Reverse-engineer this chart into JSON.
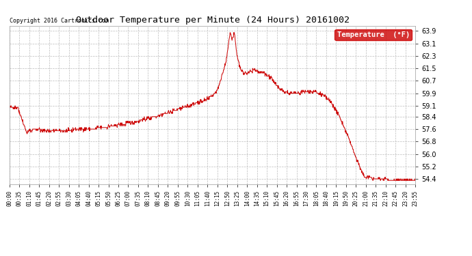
{
  "title": "Outdoor Temperature per Minute (24 Hours) 20161002",
  "copyright_text": "Copyright 2016 Cartronics.com",
  "legend_label": "Temperature  (°F)",
  "line_color": "#cc0000",
  "background_color": "#ffffff",
  "plot_bg_color": "#ffffff",
  "grid_color": "#bbbbbb",
  "yticks": [
    54.4,
    55.2,
    56.0,
    56.8,
    57.6,
    58.4,
    59.1,
    59.9,
    60.7,
    61.5,
    62.3,
    63.1,
    63.9
  ],
  "ylim": [
    54.05,
    64.25
  ],
  "xtick_labels": [
    "00:00",
    "00:35",
    "01:10",
    "01:45",
    "02:20",
    "02:55",
    "03:30",
    "04:05",
    "04:40",
    "05:15",
    "05:50",
    "06:25",
    "07:00",
    "07:35",
    "08:10",
    "08:45",
    "09:20",
    "09:55",
    "10:30",
    "11:05",
    "11:40",
    "12:15",
    "12:50",
    "13:25",
    "14:00",
    "14:35",
    "15:10",
    "15:45",
    "16:20",
    "16:55",
    "17:30",
    "18:05",
    "18:40",
    "19:15",
    "19:50",
    "20:25",
    "21:00",
    "21:35",
    "22:10",
    "22:45",
    "23:20",
    "23:55"
  ],
  "n_points": 1440,
  "seed": 42
}
